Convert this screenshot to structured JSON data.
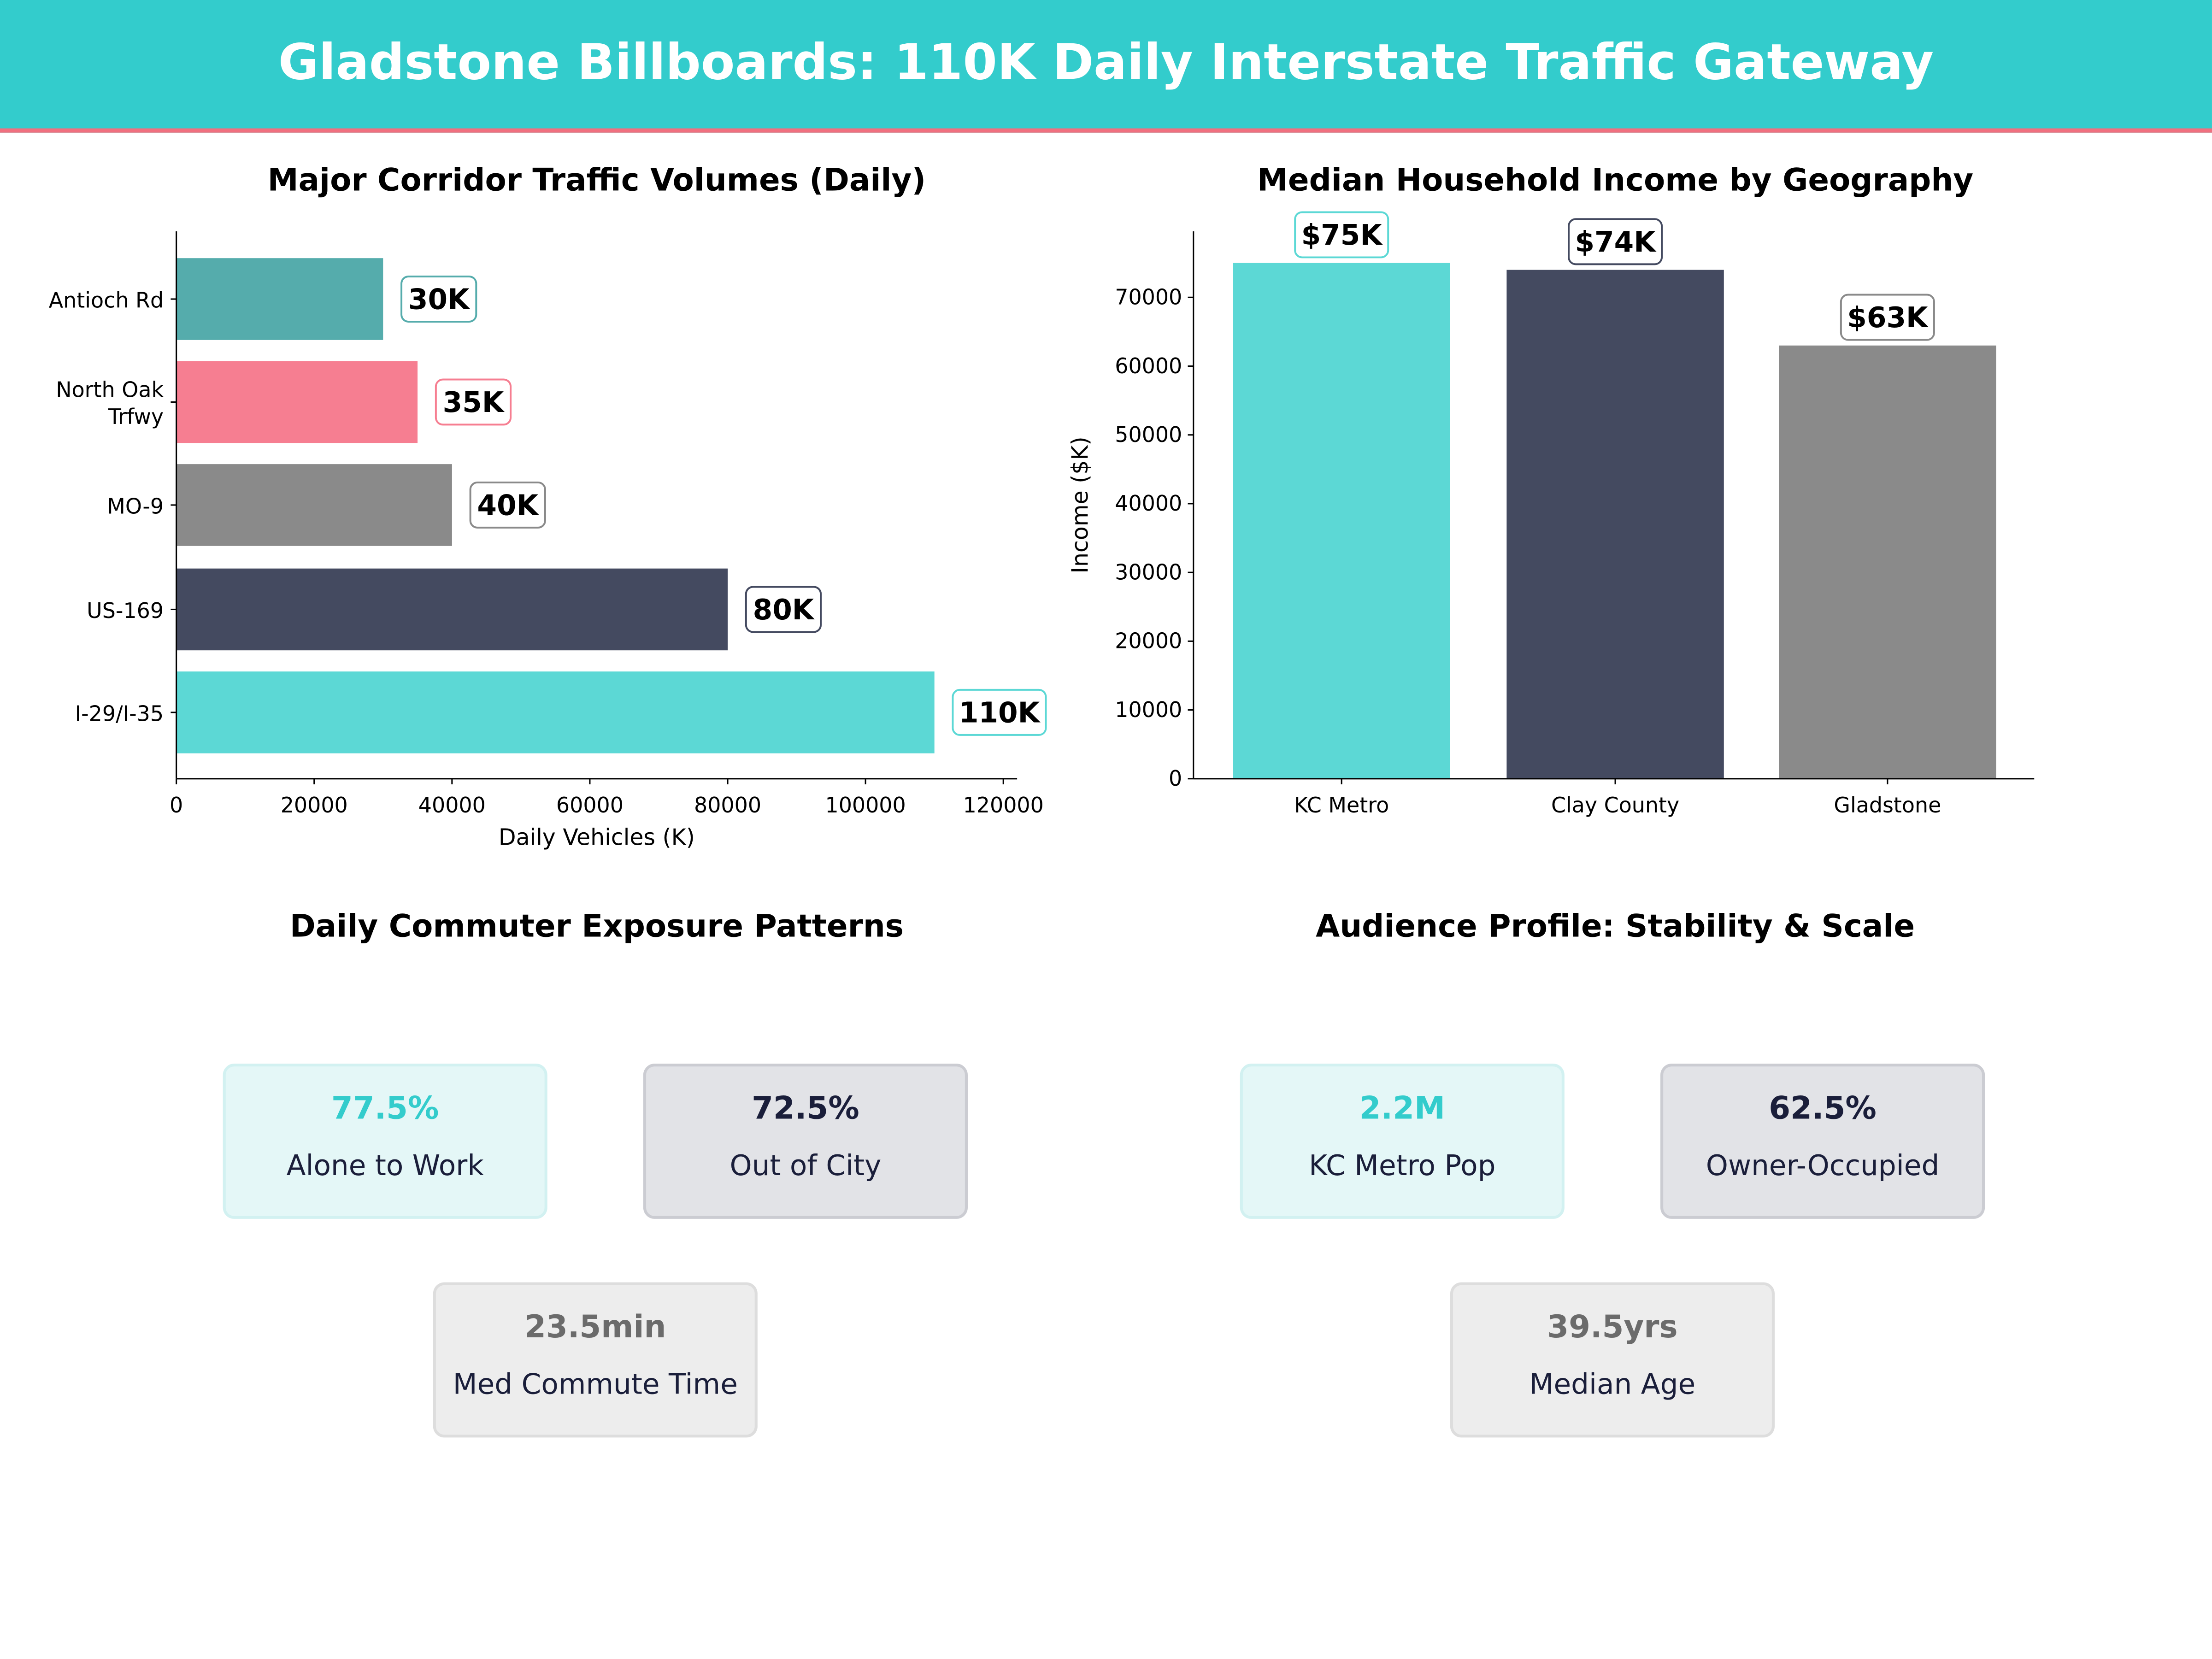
{
  "header": {
    "title": "Gladstone Billboards: 110K Daily Interstate Traffic Gateway"
  },
  "chart_data": [
    {
      "type": "bar",
      "orientation": "horizontal",
      "title": "Major Corridor Traffic Volumes (Daily)",
      "categories": [
        "Antioch Rd",
        "North Oak Trfwy",
        "MO-9",
        "US-169",
        "I-29/I-35"
      ],
      "category_lines": [
        [
          "Antioch Rd"
        ],
        [
          "North Oak",
          "Trfwy"
        ],
        [
          "MO-9"
        ],
        [
          "US-169"
        ],
        [
          "I-29/I-35"
        ]
      ],
      "values": [
        30000,
        35000,
        40000,
        80000,
        110000
      ],
      "data_labels": [
        "30K",
        "35K",
        "40K",
        "80K",
        "110K"
      ],
      "colors": [
        "#55ACAC",
        "#F67E91",
        "#8A8A8A",
        "#444A60",
        "#5CD8D5"
      ],
      "xlabel": "Daily Vehicles (K)",
      "ylabel": "",
      "xlim": [
        0,
        122000
      ],
      "xticks": [
        0,
        20000,
        40000,
        60000,
        80000,
        100000,
        120000
      ],
      "grid": false
    },
    {
      "type": "bar",
      "title": "Median Household Income by Geography",
      "categories": [
        "KC Metro",
        "Clay County",
        "Gladstone"
      ],
      "values": [
        75000,
        74000,
        63000
      ],
      "data_labels": [
        "$75K",
        "$74K",
        "$63K"
      ],
      "colors": [
        "#5CD8D5",
        "#444A60",
        "#8A8A8A"
      ],
      "xlabel": "",
      "ylabel": "Income ($K)",
      "ylim": [
        0,
        79600
      ],
      "yticks": [
        0,
        10000,
        20000,
        30000,
        40000,
        50000,
        60000,
        70000
      ],
      "grid": false
    }
  ],
  "commuter": {
    "title": "Daily Commuter Exposure Patterns",
    "cards": [
      {
        "value": "77.5%",
        "label": "Alone to Work",
        "style": "teal"
      },
      {
        "value": "72.5%",
        "label": "Out of City",
        "style": "dark"
      },
      {
        "value": "23.5min",
        "label": "Med Commute Time",
        "style": "gray"
      }
    ]
  },
  "audience": {
    "title": "Audience Profile: Stability & Scale",
    "cards": [
      {
        "value": "2.2M",
        "label": "KC Metro Pop",
        "style": "teal"
      },
      {
        "value": "62.5%",
        "label": "Owner-Occupied",
        "style": "dark"
      },
      {
        "value": "39.5yrs",
        "label": "Median Age",
        "style": "gray"
      }
    ]
  }
}
